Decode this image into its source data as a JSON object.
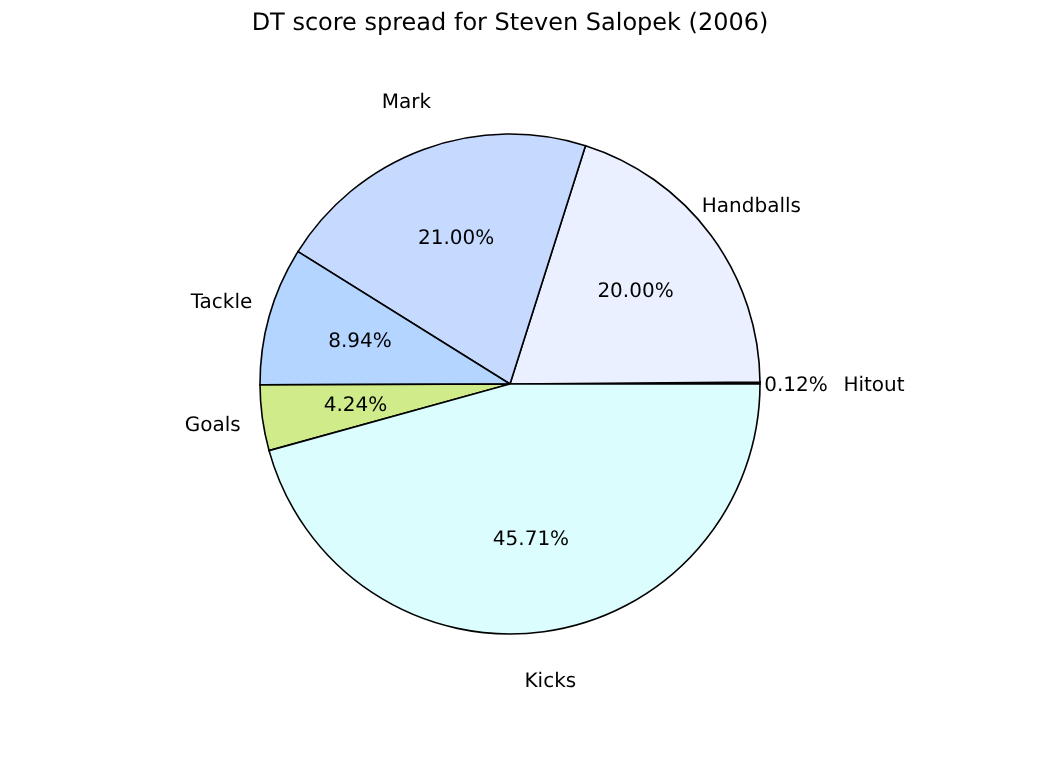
{
  "chart_data": {
    "type": "pie",
    "title": "DT score spread for Steven Salopek (2006)",
    "categories": [
      "Hitout",
      "Handballs",
      "Mark",
      "Tackle",
      "Goals",
      "Kicks"
    ],
    "values": [
      0.12,
      20.0,
      21.0,
      8.94,
      4.24,
      45.71
    ],
    "value_labels": [
      "0.12%",
      "20.00%",
      "21.00%",
      "8.94%",
      "4.24%",
      "45.71%"
    ],
    "colors": [
      "#e6e6ff",
      "#eaf0ff",
      "#c6d9ff",
      "#b3d5ff",
      "#cfeb8a",
      "#dbfdfd"
    ]
  }
}
